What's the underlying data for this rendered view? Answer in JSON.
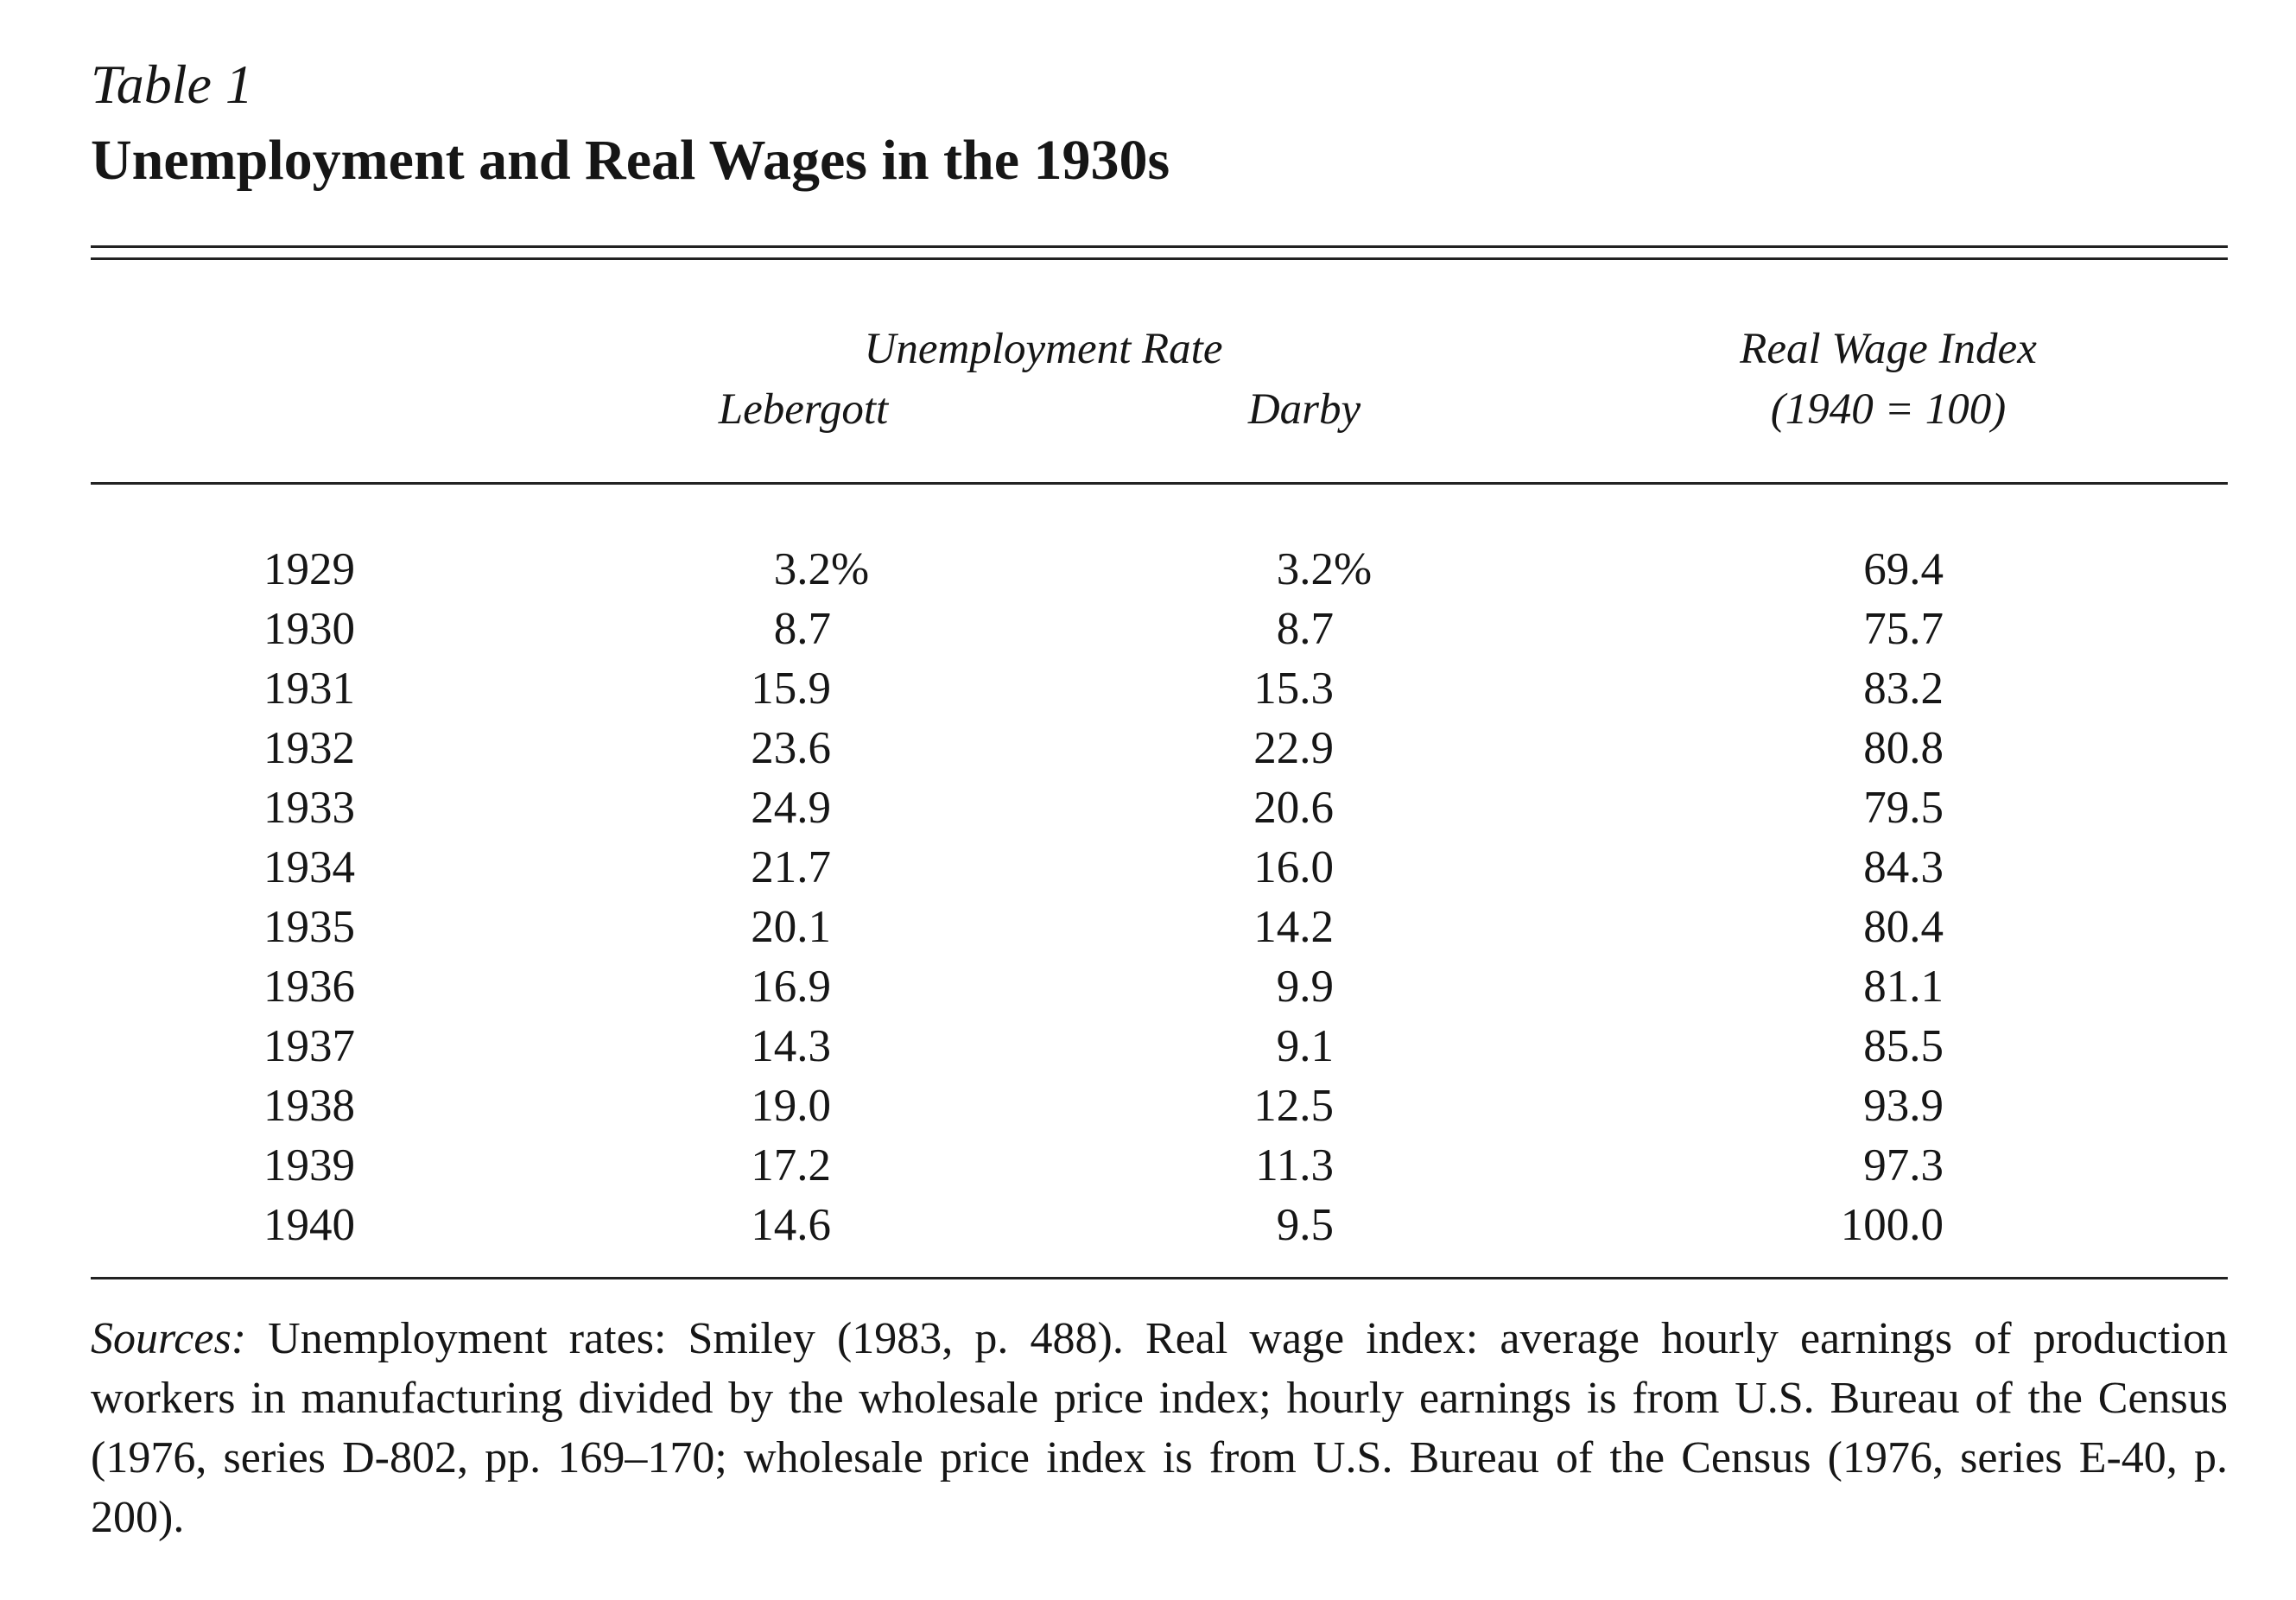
{
  "table_label": "Table 1",
  "title": "Unemployment and Real Wages in the 1930s",
  "headers": {
    "unemployment_group": "Unemployment Rate",
    "lebergott": "Lebergott",
    "darby": "Darby",
    "real_wage": "Real Wage Index",
    "real_wage_base": "(1940 = 100)"
  },
  "rows": [
    {
      "year": "1929",
      "lebergott": "3.2%",
      "darby": "3.2%",
      "real_wage": "69.4"
    },
    {
      "year": "1930",
      "lebergott": "8.7",
      "darby": "8.7",
      "real_wage": "75.7"
    },
    {
      "year": "1931",
      "lebergott": "15.9",
      "darby": "15.3",
      "real_wage": "83.2"
    },
    {
      "year": "1932",
      "lebergott": "23.6",
      "darby": "22.9",
      "real_wage": "80.8"
    },
    {
      "year": "1933",
      "lebergott": "24.9",
      "darby": "20.6",
      "real_wage": "79.5"
    },
    {
      "year": "1934",
      "lebergott": "21.7",
      "darby": "16.0",
      "real_wage": "84.3"
    },
    {
      "year": "1935",
      "lebergott": "20.1",
      "darby": "14.2",
      "real_wage": "80.4"
    },
    {
      "year": "1936",
      "lebergott": "16.9",
      "darby": "9.9",
      "real_wage": "81.1"
    },
    {
      "year": "1937",
      "lebergott": "14.3",
      "darby": "9.1",
      "real_wage": "85.5"
    },
    {
      "year": "1938",
      "lebergott": "19.0",
      "darby": "12.5",
      "real_wage": "93.9"
    },
    {
      "year": "1939",
      "lebergott": "17.2",
      "darby": "11.3",
      "real_wage": "97.3"
    },
    {
      "year": "1940",
      "lebergott": "14.6",
      "darby": "9.5",
      "real_wage": "100.0"
    }
  ],
  "sources": {
    "label": "Sources:",
    "text": "Unemployment rates: Smiley (1983, p. 488). Real wage index: average hourly earnings of production workers in manufacturing divided by the wholesale price index; hourly earnings is from U.S. Bureau of the Census (1976, series D-802, pp. 169–170; wholesale price index is from U.S. Bureau of the Census (1976, series E-40, p. 200)."
  }
}
